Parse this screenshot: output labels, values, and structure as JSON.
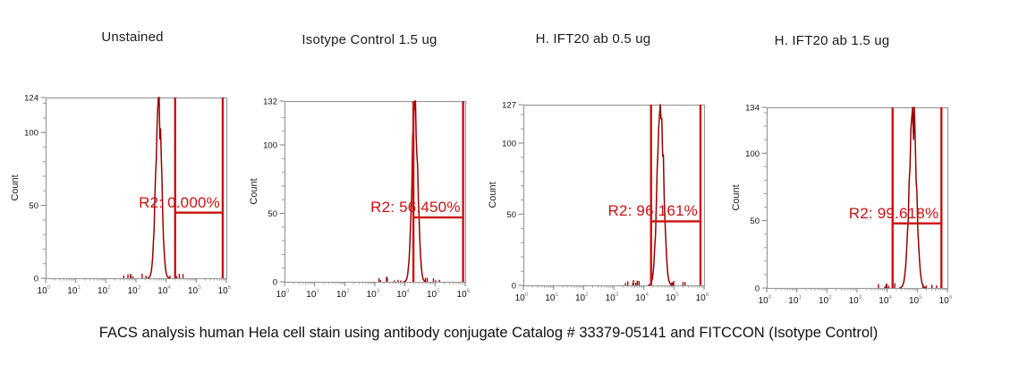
{
  "caption": "FACS analysis human Hela cell stain using antibody conjugate Catalog # 33379-05141 and FITCCON (Isotype Control)",
  "colors": {
    "histogram_fill": "#ffffff",
    "histogram_stroke": "#960000",
    "gate_red": "#cc1111",
    "axis_gray": "#9a9a9a",
    "tick_text": "#111111",
    "sup_text": "#888888"
  },
  "chart_data": [
    {
      "type": "area",
      "title": "Unstained",
      "ylabel": "Count",
      "ylim": [
        0,
        124
      ],
      "yticks": [
        0,
        50,
        100,
        124
      ],
      "x_log_range": [
        0,
        6
      ],
      "xticks": [
        "10^0",
        "10^1",
        "10^2",
        "10^3",
        "10^4",
        "10^5",
        "10^6"
      ],
      "peak": {
        "log10_center": 3.75,
        "log10_sigma": 0.095,
        "max_count": 124
      },
      "gate": {
        "log10_low": 4.3,
        "log10_high": 5.88,
        "bar_count": 45,
        "label": "R2: 0.000%",
        "percent": 0.0
      }
    },
    {
      "type": "area",
      "title": "Isotype Control 1.5 ug",
      "ylabel": "Count",
      "ylim": [
        0,
        132
      ],
      "yticks": [
        0,
        50,
        100,
        132
      ],
      "x_log_range": [
        0,
        6
      ],
      "xticks": [
        "10^0",
        "10^1",
        "10^2",
        "10^3",
        "10^4",
        "10^5",
        "10^6"
      ],
      "peak": {
        "log10_center": 4.33,
        "log10_sigma": 0.095,
        "max_count": 132
      },
      "gate": {
        "log10_low": 4.28,
        "log10_high": 5.93,
        "bar_count": 47,
        "label": "R2: 56.450%",
        "percent": 56.45
      }
    },
    {
      "type": "area",
      "title": "H. IFT20 ab 0.5 ug",
      "ylabel": "Count",
      "ylim": [
        0,
        127
      ],
      "yticks": [
        0,
        50,
        100,
        127
      ],
      "x_log_range": [
        0,
        6
      ],
      "xticks": [
        "10^0",
        "10^1",
        "10^2",
        "10^3",
        "10^4",
        "10^5",
        "10^6"
      ],
      "peak": {
        "log10_center": 4.55,
        "log10_sigma": 0.105,
        "max_count": 127
      },
      "gate": {
        "log10_low": 4.24,
        "log10_high": 5.88,
        "bar_count": 45,
        "label": "R2: 96.161%",
        "percent": 96.161
      }
    },
    {
      "type": "area",
      "title": "H. IFT20 ab 1.5 ug",
      "ylabel": "Count",
      "ylim": [
        0,
        134
      ],
      "yticks": [
        0,
        50,
        100,
        134
      ],
      "x_log_range": [
        0,
        6
      ],
      "xticks": [
        "10^0",
        "10^1",
        "10^2",
        "10^3",
        "10^4",
        "10^5",
        "10^6"
      ],
      "peak": {
        "log10_center": 4.85,
        "log10_sigma": 0.115,
        "max_count": 134
      },
      "gate": {
        "log10_low": 4.18,
        "log10_high": 5.8,
        "bar_count": 48,
        "label": "R2: 99.618%",
        "percent": 99.618
      }
    }
  ]
}
